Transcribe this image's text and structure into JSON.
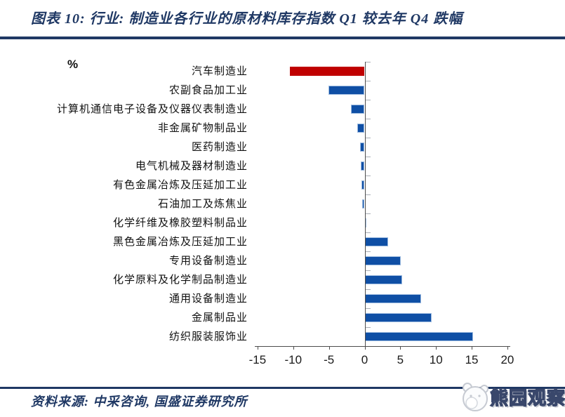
{
  "header": {
    "title": "图表 10:  行业:  制造业各行业的原材料库存指数 Q1 较去年 Q4 跌幅"
  },
  "chart_data": {
    "type": "bar",
    "orientation": "horizontal",
    "title": "制造业各行业的原材料库存指数 Q1 较去年 Q4 跌幅",
    "unit_label": "%",
    "categories": [
      "汽车制造业",
      "农副食品加工业",
      "计算机通信电子设备及仪器仪表制造业",
      "非金属矿物制品业",
      "医药制造业",
      "电气机械及器材制造业",
      "有色金属冶炼及压延加工业",
      "石油加工及炼焦业",
      "化学纤维及橡胶塑料制品业",
      "黑色金属冶炼及压延加工业",
      "专用设备制造业",
      "化学原料及化学制品制造业",
      "通用设备制造业",
      "金属制品业",
      "纺织服装服饰业"
    ],
    "values": [
      -10.5,
      -5.1,
      -1.9,
      -1.0,
      -0.6,
      -0.5,
      -0.4,
      -0.3,
      0.2,
      3.3,
      5.1,
      5.3,
      7.9,
      9.4,
      15.2
    ],
    "highlight_index": 0,
    "x_ticks": [
      -15,
      -10,
      -5,
      0,
      5,
      10,
      15,
      20
    ],
    "xlim": [
      -15,
      20
    ],
    "grid": false,
    "legend": null,
    "colors": {
      "bar_default": "#0F4FA5",
      "bar_border": "#9FBCE0",
      "bar_highlight": "#C00000",
      "axis": "#4d4d4d"
    }
  },
  "footer": {
    "source": "资料来源:  中采咨询,  国盛证券研究所"
  },
  "logo": {
    "text": "熊园观察"
  },
  "theme": {
    "navy": "#1F3864"
  }
}
